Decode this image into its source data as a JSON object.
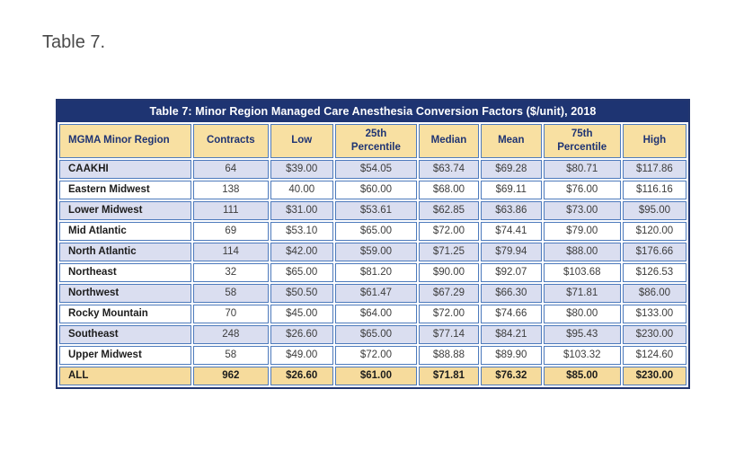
{
  "theme": {
    "outer_border": "#22366f",
    "title_bar_bg": "#1e3472",
    "title_bar_text": "#ffffff",
    "header_bg": "#f8e0a2",
    "header_text": "#1f3473",
    "row_alt_bg": "#dadef0",
    "row_bg": "#ffffff",
    "total_bg": "#f6db9c",
    "cell_border": "#4d7abc"
  },
  "page": {
    "heading": "Table 7."
  },
  "table": {
    "title": "Table 7: Minor Region Managed Care Anesthesia Conversion Factors ($/unit), 2018",
    "columns": [
      "MGMA Minor Region",
      "Contracts",
      "Low",
      "25th\nPercentile",
      "Median",
      "Mean",
      "75th\nPercentile",
      "High"
    ],
    "rows": [
      [
        "CAAKHI",
        "64",
        "$39.00",
        "$54.05",
        "$63.74",
        "$69.28",
        "$80.71",
        "$117.86"
      ],
      [
        "Eastern Midwest",
        "138",
        "40.00",
        "$60.00",
        "$68.00",
        "$69.11",
        "$76.00",
        "$116.16"
      ],
      [
        "Lower Midwest",
        "111",
        "$31.00",
        "$53.61",
        "$62.85",
        "$63.86",
        "$73.00",
        "$95.00"
      ],
      [
        "Mid Atlantic",
        "69",
        "$53.10",
        "$65.00",
        "$72.00",
        "$74.41",
        "$79.00",
        "$120.00"
      ],
      [
        "North Atlantic",
        "114",
        "$42.00",
        "$59.00",
        "$71.25",
        "$79.94",
        "$88.00",
        "$176.66"
      ],
      [
        "Northeast",
        "32",
        "$65.00",
        "$81.20",
        "$90.00",
        "$92.07",
        "$103.68",
        "$126.53"
      ],
      [
        "Northwest",
        "58",
        "$50.50",
        "$61.47",
        "$67.29",
        "$66.30",
        "$71.81",
        "$86.00"
      ],
      [
        "Rocky Mountain",
        "70",
        "$45.00",
        "$64.00",
        "$72.00",
        "$74.66",
        "$80.00",
        "$133.00"
      ],
      [
        "Southeast",
        "248",
        "$26.60",
        "$65.00",
        "$77.14",
        "$84.21",
        "$95.43",
        "$230.00"
      ],
      [
        "Upper Midwest",
        "58",
        "$49.00",
        "$72.00",
        "$88.88",
        "$89.90",
        "$103.32",
        "$124.60"
      ]
    ],
    "total_row": [
      "ALL",
      "962",
      "$26.60",
      "$61.00",
      "$71.81",
      "$76.32",
      "$85.00",
      "$230.00"
    ]
  }
}
